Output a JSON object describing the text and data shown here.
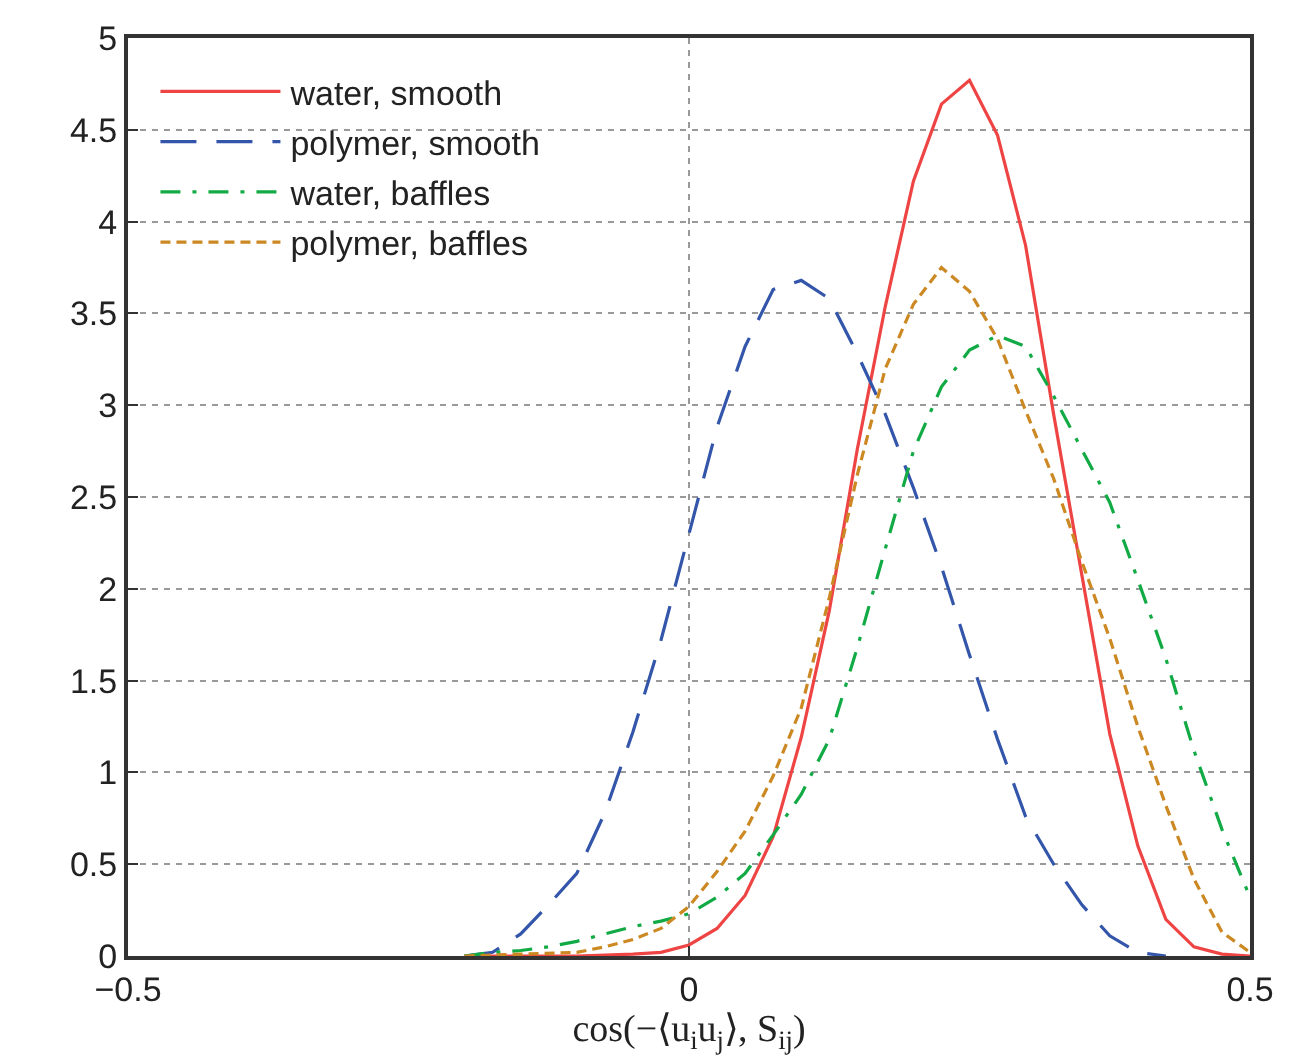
{
  "chart_data": {
    "type": "line",
    "xlabel": "cos(−⟨u$_{i}$u$_{j}$⟩, S$_{ij}$)",
    "xlim": [
      -0.5,
      0.5
    ],
    "xticks": [
      {
        "value": -0.5,
        "label": "−0.5"
      },
      0,
      0.5
    ],
    "ylim": [
      0,
      5
    ],
    "yticks": [
      0,
      0.5,
      1,
      1.5,
      2,
      2.5,
      3,
      3.5,
      4,
      4.5,
      5
    ],
    "grid": true,
    "legend": "top left",
    "marker": "none",
    "series": [
      {
        "name": "water, smooth",
        "color": "#ee4444",
        "line_style": "solid",
        "x": [
          -0.2,
          -0.1,
          -0.05,
          -0.025,
          0,
          0.025,
          0.05,
          0.075,
          0.1,
          0.125,
          0.15,
          0.175,
          0.2,
          0.225,
          0.25,
          0.275,
          0.3,
          0.325,
          0.35,
          0.375,
          0.4,
          0.425,
          0.45,
          0.475,
          0.5
        ],
        "values": [
          0,
          0,
          0.01,
          0.02,
          0.06,
          0.15,
          0.33,
          0.65,
          1.19,
          1.88,
          2.76,
          3.54,
          4.22,
          4.64,
          4.77,
          4.47,
          3.87,
          2.95,
          2.08,
          1.21,
          0.6,
          0.2,
          0.05,
          0.01,
          0
        ]
      },
      {
        "name": "polymer, smooth",
        "color": "#3355aa",
        "line_style": "dashed",
        "x": [
          -0.2,
          -0.175,
          -0.15,
          -0.125,
          -0.1,
          -0.075,
          -0.05,
          -0.025,
          0,
          0.025,
          0.05,
          0.075,
          0.1,
          0.125,
          0.15,
          0.175,
          0.2,
          0.225,
          0.25,
          0.275,
          0.3,
          0.325,
          0.35,
          0.375,
          0.4,
          0.425
        ],
        "values": [
          0,
          0.02,
          0.12,
          0.28,
          0.45,
          0.78,
          1.22,
          1.72,
          2.3,
          2.88,
          3.32,
          3.63,
          3.68,
          3.58,
          3.28,
          2.95,
          2.55,
          2.12,
          1.64,
          1.18,
          0.76,
          0.5,
          0.28,
          0.11,
          0.02,
          0
        ]
      },
      {
        "name": "water, baffles",
        "color": "#11aa44",
        "line_style": "dashdot",
        "x": [
          -0.2,
          -0.175,
          -0.15,
          -0.125,
          -0.1,
          -0.075,
          -0.05,
          -0.025,
          0,
          0.025,
          0.05,
          0.075,
          0.1,
          0.125,
          0.15,
          0.175,
          0.2,
          0.225,
          0.25,
          0.275,
          0.3,
          0.325,
          0.35,
          0.375,
          0.4,
          0.425,
          0.45,
          0.475,
          0.5
        ],
        "values": [
          0,
          0.02,
          0.03,
          0.05,
          0.08,
          0.12,
          0.16,
          0.19,
          0.23,
          0.32,
          0.45,
          0.66,
          0.88,
          1.18,
          1.68,
          2.22,
          2.75,
          3.1,
          3.3,
          3.38,
          3.32,
          3.05,
          2.76,
          2.47,
          2.05,
          1.62,
          1.12,
          0.69,
          0.32
        ]
      },
      {
        "name": "polymer, baffles",
        "color": "#cc8822",
        "line_style": "dotted",
        "x": [
          -0.2,
          -0.15,
          -0.1,
          -0.075,
          -0.05,
          -0.025,
          0,
          0.025,
          0.05,
          0.075,
          0.1,
          0.125,
          0.15,
          0.175,
          0.2,
          0.225,
          0.25,
          0.275,
          0.3,
          0.325,
          0.35,
          0.375,
          0.4,
          0.425,
          0.45,
          0.475,
          0.5
        ],
        "values": [
          0,
          0.01,
          0.02,
          0.05,
          0.09,
          0.15,
          0.27,
          0.46,
          0.68,
          0.98,
          1.35,
          1.95,
          2.62,
          3.2,
          3.55,
          3.75,
          3.62,
          3.36,
          2.97,
          2.6,
          2.15,
          1.73,
          1.25,
          0.82,
          0.42,
          0.13,
          0.02
        ]
      }
    ]
  }
}
